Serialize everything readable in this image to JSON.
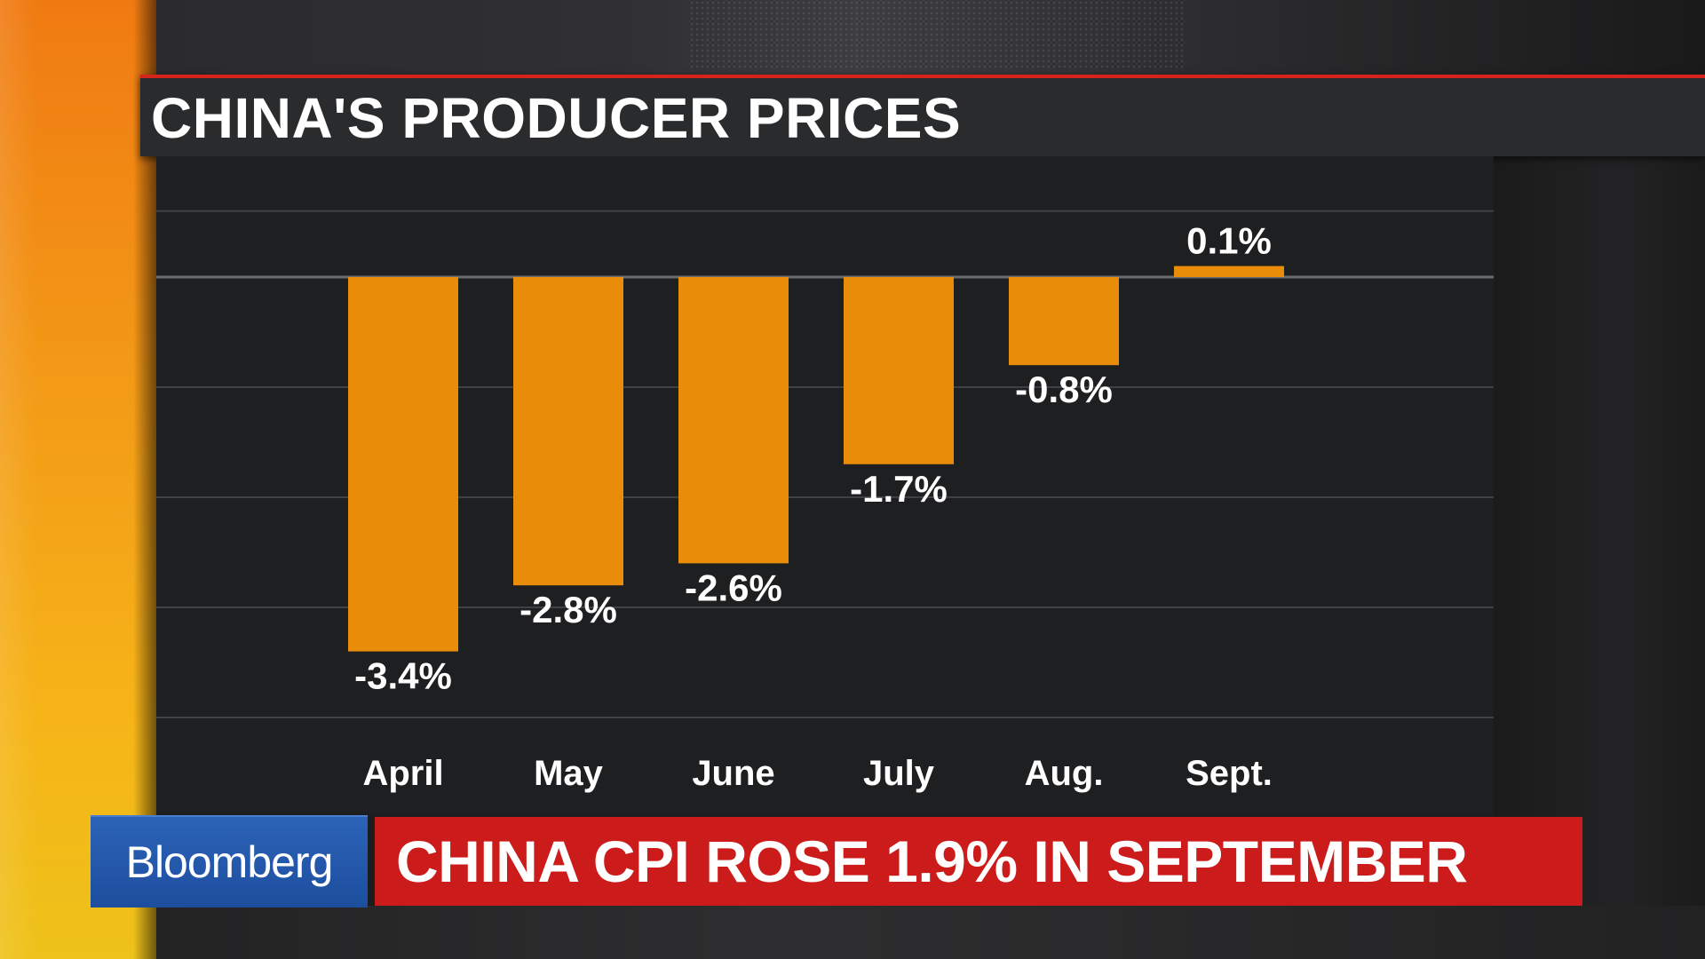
{
  "title": "CHINA'S PRODUCER PRICES",
  "brand": "Bloomberg",
  "headline": "CHINA CPI ROSE 1.9% IN SEPTEMBER",
  "colors": {
    "bar": "#e88c0a",
    "title_accent": "#d4241b",
    "headline_bg": "#cc1b1b",
    "brand_bg": "#1d4e9e"
  },
  "chart_data": {
    "type": "bar",
    "categories": [
      "April",
      "May",
      "June",
      "July",
      "Aug.",
      "Sept."
    ],
    "values": [
      -3.4,
      -2.8,
      -2.6,
      -1.7,
      -0.8,
      0.1
    ],
    "labels": [
      "-3.4%",
      "-2.8%",
      "-2.6%",
      "-1.7%",
      "-0.8%",
      "0.1%"
    ],
    "ylim": [
      -3.4,
      0.7
    ],
    "grid": true
  }
}
